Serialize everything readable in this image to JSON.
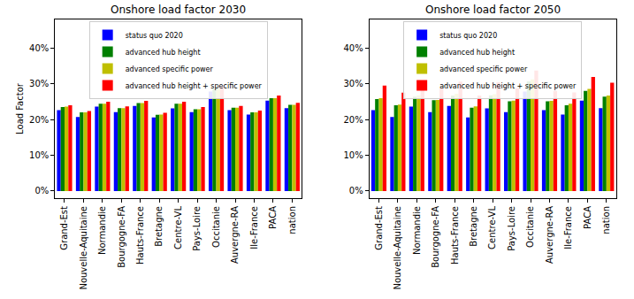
{
  "chart_data": [
    {
      "type": "bar",
      "title": "Onshore load factor 2030",
      "y_label": "Load Factor",
      "categories": [
        "Grand-Est",
        "Nouvelle-Aquitaine",
        "Normandie",
        "Bourgogne-FA",
        "Hauts-France",
        "Bretagne",
        "Centre-VL",
        "Pays-Loire",
        "Occitanie",
        "Auvergne-RA",
        "Ile-France",
        "PACA",
        "nation"
      ],
      "series": [
        {
          "name": "status quo 2020",
          "color": "#0000ff",
          "values": [
            22.6,
            20.7,
            23.6,
            22.1,
            23.8,
            20.6,
            23.1,
            22.1,
            27.8,
            22.6,
            21.4,
            25.3,
            23.2
          ]
        },
        {
          "name": "advanced hub height",
          "color": "#008000",
          "values": [
            23.5,
            22.0,
            24.4,
            23.2,
            24.6,
            21.3,
            24.4,
            22.9,
            28.7,
            23.3,
            22.0,
            26.0,
            24.1
          ]
        },
        {
          "name": "advanced specific power",
          "color": "#bfbf00",
          "values": [
            23.6,
            22.0,
            24.4,
            23.2,
            24.6,
            21.4,
            24.4,
            22.9,
            28.7,
            23.3,
            22.0,
            26.0,
            24.1
          ]
        },
        {
          "name": "advanced hub height + specific power",
          "color": "#ff0000",
          "values": [
            24.0,
            22.4,
            25.0,
            23.7,
            25.2,
            21.9,
            25.0,
            23.5,
            29.2,
            23.8,
            22.5,
            26.7,
            24.7
          ]
        }
      ],
      "ylim": [
        -2,
        48
      ],
      "yticks": [
        {
          "value": 0,
          "label": "0%"
        },
        {
          "value": 10,
          "label": "10%"
        },
        {
          "value": 20,
          "label": "20%"
        },
        {
          "value": 30,
          "label": "30%"
        },
        {
          "value": 40,
          "label": "40%"
        }
      ],
      "grid": false,
      "legend": "upper center"
    },
    {
      "type": "bar",
      "title": "Onshore load factor 2050",
      "categories": [
        "Grand-Est",
        "Nouvelle-Aquitaine",
        "Normandie",
        "Bourgogne-FA",
        "Hauts-France",
        "Bretagne",
        "Centre-VL",
        "Pays-Loire",
        "Occitanie",
        "Auvergne-RA",
        "Ile-France",
        "PACA",
        "nation"
      ],
      "series": [
        {
          "name": "status quo 2020",
          "color": "#0000ff",
          "values": [
            22.6,
            20.7,
            23.6,
            22.1,
            23.8,
            20.6,
            23.1,
            22.1,
            27.8,
            22.6,
            21.4,
            25.3,
            23.2
          ]
        },
        {
          "name": "advanced hub height",
          "color": "#008000",
          "values": [
            25.7,
            24.0,
            26.4,
            25.4,
            26.7,
            23.3,
            26.8,
            25.1,
            30.7,
            25.1,
            24.0,
            28.0,
            26.4
          ]
        },
        {
          "name": "advanced specific power",
          "color": "#bfbf00",
          "values": [
            26.0,
            24.2,
            26.8,
            25.5,
            27.2,
            23.7,
            27.1,
            25.3,
            31.2,
            25.2,
            24.4,
            28.6,
            26.7
          ]
        },
        {
          "name": "advanced hub height + specific power",
          "color": "#ff0000",
          "values": [
            29.5,
            27.5,
            30.2,
            28.9,
            30.6,
            26.7,
            30.4,
            28.7,
            33.7,
            28.0,
            27.6,
            31.9,
            30.3
          ]
        }
      ],
      "ylim": [
        -2,
        48
      ],
      "yticks": [
        {
          "value": 0,
          "label": "0%"
        },
        {
          "value": 10,
          "label": "10%"
        },
        {
          "value": 20,
          "label": "20%"
        },
        {
          "value": 30,
          "label": "30%"
        },
        {
          "value": 40,
          "label": "40%"
        }
      ],
      "grid": false,
      "legend": "upper center"
    }
  ]
}
